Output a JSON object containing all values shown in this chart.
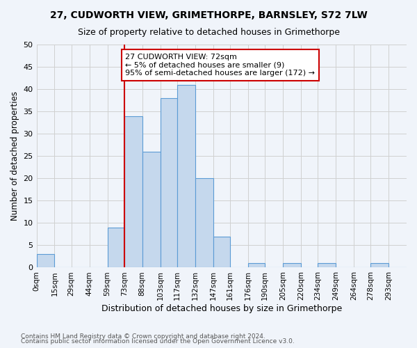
{
  "title": "27, CUDWORTH VIEW, GRIMETHORPE, BARNSLEY, S72 7LW",
  "subtitle": "Size of property relative to detached houses in Grimethorpe",
  "xlabel": "Distribution of detached houses by size in Grimethorpe",
  "ylabel": "Number of detached properties",
  "footnote1": "Contains HM Land Registry data © Crown copyright and database right 2024.",
  "footnote2": "Contains public sector information licensed under the Open Government Licence v3.0.",
  "bin_edges": [
    0,
    15,
    29,
    44,
    59,
    73,
    88,
    103,
    117,
    132,
    147,
    161,
    176,
    190,
    205,
    220,
    234,
    249,
    264,
    278,
    293,
    308
  ],
  "bar_values": [
    3,
    0,
    0,
    0,
    9,
    34,
    26,
    38,
    41,
    20,
    7,
    0,
    1,
    0,
    1,
    0,
    1,
    0,
    0,
    1,
    0
  ],
  "x_tick_labels": [
    "0sqm",
    "15sqm",
    "29sqm",
    "44sqm",
    "59sqm",
    "73sqm",
    "88sqm",
    "103sqm",
    "117sqm",
    "132sqm",
    "147sqm",
    "161sqm",
    "176sqm",
    "190sqm",
    "205sqm",
    "220sqm",
    "234sqm",
    "249sqm",
    "264sqm",
    "278sqm",
    "293sqm"
  ],
  "ylim": [
    0,
    50
  ],
  "yticks": [
    0,
    5,
    10,
    15,
    20,
    25,
    30,
    35,
    40,
    45,
    50
  ],
  "bar_color": "#c5d8ed",
  "bar_edge_color": "#5b9bd5",
  "grid_color": "#d0d0d0",
  "background_color": "#f0f4fa",
  "red_line_x": 73,
  "annotation_text": "27 CUDWORTH VIEW: 72sqm\n← 5% of detached houses are smaller (9)\n95% of semi-detached houses are larger (172) →",
  "annotation_box_color": "#ffffff",
  "annotation_box_edge": "#cc0000",
  "red_line_color": "#cc0000"
}
